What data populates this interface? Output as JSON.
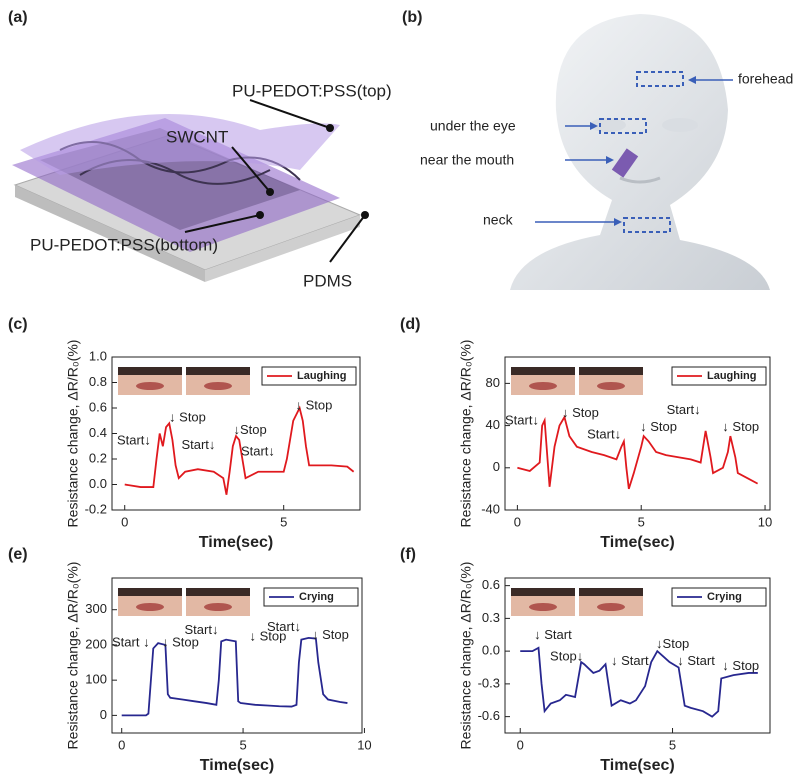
{
  "panel_a": {
    "label": "(a)",
    "labels": [
      "PU-PEDOT:PSS(top)",
      "SWCNT",
      "PU-PEDOT:PSS(bottom)",
      "PDMS"
    ]
  },
  "panel_b": {
    "label": "(b)",
    "labels": [
      "forehead",
      "under the eye",
      "near the mouth",
      "neck"
    ]
  },
  "chart_data": [
    {
      "type": "line",
      "label": "(c)",
      "x_label": "Time(sec)",
      "y_label": "Resistance change, ΔR/R₀(%)",
      "x": [
        0,
        0.5,
        0.9,
        1.0,
        1.1,
        1.2,
        1.3,
        1.4,
        1.5,
        1.6,
        1.7,
        1.9,
        2.3,
        2.8,
        3.1,
        3.2,
        3.3,
        3.4,
        3.5,
        3.6,
        3.7,
        3.8,
        4.2,
        4.6,
        5.0,
        5.1,
        5.2,
        5.3,
        5.4,
        5.5,
        5.6,
        5.7,
        5.8,
        5.9,
        6.0,
        6.5,
        7.0,
        7.2
      ],
      "series": [
        {
          "name": "Laughing",
          "color": "#e0191e",
          "values": [
            0,
            -0.02,
            -0.02,
            0.2,
            0.4,
            0.3,
            0.45,
            0.48,
            0.35,
            0.15,
            0.05,
            0.1,
            0.12,
            0.1,
            0.05,
            -0.08,
            0.1,
            0.3,
            0.38,
            0.35,
            0.2,
            0.05,
            0.1,
            0.1,
            0.1,
            0.2,
            0.35,
            0.5,
            0.55,
            0.6,
            0.5,
            0.3,
            0.15,
            0.15,
            0.15,
            0.15,
            0.14,
            0.1
          ]
        }
      ],
      "xlim": [
        -0.4,
        7.4
      ],
      "xticks": [
        0,
        5
      ],
      "ylim": [
        -0.2,
        1.0
      ],
      "yticks": [
        -0.2,
        {
          "value": 0,
          "label": "0.0"
        },
        0.2,
        0.4,
        0.6,
        0.8,
        {
          "value": 1,
          "label": "1.0"
        }
      ],
      "annotations": [
        "Start↓",
        "↓ Stop",
        "Start↓",
        "↓Stop",
        "Start↓",
        "↓ Stop"
      ]
    },
    {
      "type": "line",
      "label": "(d)",
      "x_label": "Time(sec)",
      "y_label": "Resistance change, ΔR/R₀(%)",
      "x": [
        0,
        0.5,
        0.9,
        1.0,
        1.1,
        1.3,
        1.5,
        1.7,
        1.9,
        2.1,
        2.4,
        3.0,
        3.5,
        4.0,
        4.2,
        4.3,
        4.4,
        4.5,
        4.7,
        5.0,
        5.1,
        5.3,
        5.6,
        6.0,
        6.5,
        7.0,
        7.4,
        7.6,
        7.8,
        7.9,
        8.3,
        8.5,
        8.6,
        8.8,
        8.9,
        9.3,
        9.7
      ],
      "series": [
        {
          "name": "Laughing",
          "color": "#e0191e",
          "values": [
            0,
            -3,
            5,
            40,
            45,
            -18,
            20,
            40,
            48,
            30,
            20,
            15,
            12,
            8,
            20,
            25,
            0,
            -20,
            -5,
            20,
            30,
            25,
            15,
            12,
            10,
            8,
            5,
            35,
            10,
            -5,
            0,
            15,
            30,
            10,
            -5,
            -10,
            -15
          ]
        }
      ],
      "xlim": [
        -0.5,
        10.2
      ],
      "xticks": [
        0,
        5,
        10
      ],
      "ylim": [
        -40,
        105
      ],
      "yticks": [
        -40,
        0,
        40,
        80
      ],
      "annotations": [
        "Start↓",
        "↓ Stop",
        "Start↓",
        "↓ Stop",
        "Start↓",
        "↓ Stop"
      ]
    },
    {
      "type": "line",
      "label": "(e)",
      "x_label": "Time(sec)",
      "y_label": "Resistance change, ΔR/R₀(%)",
      "x": [
        0,
        0.5,
        1.0,
        1.1,
        1.3,
        1.5,
        1.8,
        1.9,
        2.0,
        2.5,
        3.0,
        3.5,
        3.9,
        4.0,
        4.1,
        4.3,
        4.7,
        4.8,
        4.9,
        5.5,
        6.0,
        6.5,
        7.0,
        7.2,
        7.3,
        7.4,
        7.7,
        8.0,
        8.1,
        8.3,
        8.5,
        9.0,
        9.3
      ],
      "series": [
        {
          "name": "Crying",
          "color": "#27278f",
          "values": [
            0,
            0,
            0,
            5,
            190,
            205,
            200,
            60,
            50,
            45,
            40,
            35,
            30,
            100,
            210,
            215,
            210,
            40,
            35,
            30,
            28,
            26,
            25,
            30,
            150,
            215,
            220,
            218,
            150,
            60,
            45,
            38,
            35
          ]
        }
      ],
      "xlim": [
        -0.4,
        9.9
      ],
      "xticks": [
        0,
        5,
        10
      ],
      "ylim": [
        -50,
        390
      ],
      "yticks": [
        0,
        100,
        200,
        300
      ],
      "annotations": [
        "Start ↓",
        "↓ Stop",
        "Start↓",
        "↓ Stop",
        "Start↓",
        "↓ Stop"
      ]
    },
    {
      "type": "line",
      "label": "(f)",
      "x_label": "Time(sec)",
      "y_label": "Resistance change, ΔR/R₀(%)",
      "x": [
        0,
        0.4,
        0.6,
        0.7,
        0.8,
        1.0,
        1.3,
        1.5,
        1.8,
        2.0,
        2.1,
        2.4,
        2.6,
        2.8,
        3.0,
        3.3,
        3.6,
        3.8,
        4.1,
        4.3,
        4.5,
        4.7,
        4.9,
        5.2,
        5.4,
        5.6,
        6.0,
        6.3,
        6.5,
        6.6,
        7.0,
        7.5,
        7.8
      ],
      "series": [
        {
          "name": "Crying",
          "color": "#27278f",
          "values": [
            0,
            0,
            0.03,
            -0.3,
            -0.55,
            -0.48,
            -0.45,
            -0.4,
            -0.42,
            -0.1,
            -0.12,
            -0.2,
            -0.18,
            -0.12,
            -0.5,
            -0.45,
            -0.48,
            -0.45,
            -0.32,
            -0.1,
            0.0,
            -0.05,
            -0.1,
            -0.15,
            -0.5,
            -0.52,
            -0.55,
            -0.6,
            -0.55,
            -0.25,
            -0.22,
            -0.2,
            -0.2
          ]
        }
      ],
      "xlim": [
        -0.5,
        8.2
      ],
      "xticks": [
        0,
        5
      ],
      "ylim": [
        -0.75,
        0.67
      ],
      "yticks": [
        0.6,
        0.3,
        {
          "value": 0,
          "label": "0.0"
        },
        -0.3,
        -0.6
      ],
      "annotations": [
        "↓ Start",
        "Stop↓",
        "↓ Start",
        "↓Stop",
        "↓ Start",
        "↓ Stop"
      ]
    }
  ]
}
